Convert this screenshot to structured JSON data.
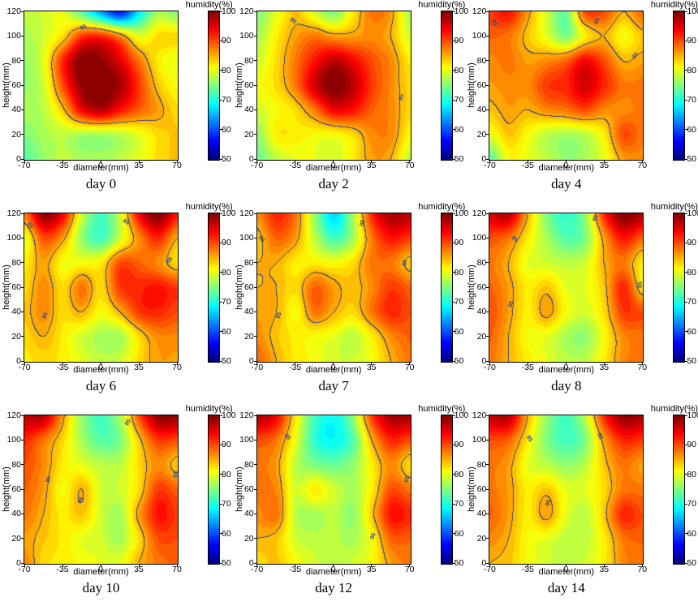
{
  "figure": {
    "background": "#ffffff"
  },
  "chart_data": {
    "type": "heatmap",
    "layout": "3x3-grid-filled-contour",
    "colormap": "jet",
    "value_range": [
      50,
      100
    ],
    "x_range": [
      -70,
      70
    ],
    "y_range": [
      0,
      120
    ],
    "xlabel": "diameter(mm)",
    "ylabel": "height(mm)",
    "colorbar_label": "humidity(%)",
    "x_ticks": [
      -70,
      -35,
      0,
      35,
      70
    ],
    "x_tick_labels": [
      "-70",
      "-35",
      "0",
      "35",
      "70"
    ],
    "y_ticks": [
      0,
      20,
      40,
      60,
      80,
      100,
      120
    ],
    "y_tick_labels": [
      "0",
      "20",
      "40",
      "60",
      "80",
      "100",
      "120"
    ],
    "colorbar_ticks": [
      50,
      60,
      70,
      80,
      90,
      100
    ],
    "colorbar_tick_labels": [
      "50",
      "60",
      "70",
      "80",
      "90",
      "100"
    ],
    "contour_level": 85,
    "contour_label": "85",
    "contour_color": "#3b4a80",
    "grid_x": [
      -70,
      -52.5,
      -35,
      -17.5,
      0,
      17.5,
      35,
      52.5,
      70
    ],
    "grid_y": [
      0,
      20,
      40,
      60,
      80,
      100,
      120
    ],
    "panels": [
      {
        "title": "day 0",
        "values": [
          [
            73,
            76,
            78,
            77,
            77,
            78,
            80,
            83,
            84
          ],
          [
            75,
            77,
            78,
            77,
            77,
            78,
            80,
            83,
            84
          ],
          [
            77,
            78,
            84,
            94,
            97,
            93,
            89,
            86,
            83
          ],
          [
            76,
            79,
            90,
            99,
            100,
            98,
            91,
            84,
            81
          ],
          [
            76,
            80,
            92,
            100,
            99,
            95,
            88,
            82,
            80
          ],
          [
            77,
            79,
            83,
            91,
            92,
            87,
            80,
            83,
            83
          ],
          [
            78,
            79,
            80,
            73,
            64,
            57,
            68,
            77,
            75
          ]
        ],
        "contour_labels": [
          {
            "x": -16,
            "y": 107,
            "angle": -22
          }
        ]
      },
      {
        "title": "day 2",
        "values": [
          [
            74,
            78,
            80,
            80,
            79,
            82,
            86,
            85,
            78
          ],
          [
            76,
            82,
            82,
            81,
            81,
            83,
            87,
            87,
            81
          ],
          [
            79,
            81,
            83,
            88,
            94,
            93,
            89,
            87,
            83
          ],
          [
            81,
            83,
            88,
            96,
            100,
            97,
            91,
            87,
            83
          ],
          [
            79,
            83,
            88,
            93,
            97,
            94,
            90,
            87,
            82
          ],
          [
            77,
            82,
            86,
            88,
            86,
            86,
            87,
            85,
            79
          ],
          [
            75,
            80,
            84,
            79,
            75,
            82,
            88,
            86,
            77
          ]
        ],
        "contour_labels": [
          {
            "x": -37,
            "y": 112,
            "angle": 38
          },
          {
            "x": 63,
            "y": 50,
            "angle": -78
          }
        ]
      },
      {
        "title": "day 4",
        "values": [
          [
            73,
            81,
            80,
            78,
            76,
            77,
            80,
            86,
            87
          ],
          [
            80,
            84,
            81,
            78,
            77,
            78,
            82,
            90,
            88
          ],
          [
            84,
            86,
            85,
            87,
            88,
            90,
            87,
            87,
            88
          ],
          [
            86,
            87,
            87,
            91,
            92,
            96,
            92,
            88,
            88
          ],
          [
            87,
            88,
            86,
            87,
            89,
            94,
            90,
            85,
            86
          ],
          [
            89,
            88,
            84,
            80,
            75,
            82,
            85,
            81,
            84
          ],
          [
            91,
            93,
            86,
            79,
            74,
            90,
            90,
            85,
            89
          ]
        ],
        "contour_labels": [
          {
            "x": -66,
            "y": 111,
            "angle": 62
          },
          {
            "x": 29,
            "y": 112,
            "angle": -72
          },
          {
            "x": 64,
            "y": 84,
            "angle": -55
          }
        ]
      },
      {
        "title": "day 6",
        "values": [
          [
            82,
            83,
            82,
            80,
            78,
            79,
            83,
            86,
            86
          ],
          [
            83,
            85,
            82,
            79,
            77,
            77,
            83,
            87,
            87
          ],
          [
            84,
            87,
            83,
            85,
            81,
            85,
            91,
            92,
            90
          ],
          [
            83,
            87,
            83,
            88,
            83,
            91,
            92,
            93,
            91
          ],
          [
            82,
            86,
            81,
            81,
            82,
            90,
            89,
            87,
            83
          ],
          [
            80,
            90,
            86,
            76,
            72,
            79,
            87,
            92,
            85
          ],
          [
            88,
            99,
            94,
            79,
            72,
            79,
            94,
            100,
            93
          ]
        ],
        "contour_labels": [
          {
            "x": -65,
            "y": 110,
            "angle": 50
          },
          {
            "x": -51,
            "y": 37,
            "angle": -72
          },
          {
            "x": 23,
            "y": 113,
            "angle": 30
          },
          {
            "x": 63,
            "y": 82,
            "angle": -45
          }
        ]
      },
      {
        "title": "day 7",
        "values": [
          [
            89,
            85,
            82,
            81,
            79,
            79,
            81,
            85,
            88
          ],
          [
            87,
            84,
            82,
            81,
            80,
            78,
            82,
            87,
            89
          ],
          [
            86,
            85,
            81,
            88,
            85,
            83,
            88,
            92,
            90
          ],
          [
            85,
            85,
            83,
            89,
            86,
            84,
            87,
            91,
            89
          ],
          [
            85,
            85,
            82,
            82,
            81,
            83,
            88,
            88,
            84
          ],
          [
            84,
            89,
            86,
            78,
            72,
            77,
            88,
            93,
            91
          ],
          [
            87,
            92,
            88,
            76,
            67,
            77,
            92,
            98,
            97
          ]
        ],
        "contour_labels": [
          {
            "x": -66,
            "y": 99,
            "angle": 55
          },
          {
            "x": -50,
            "y": 37,
            "angle": -75
          },
          {
            "x": 27,
            "y": 112,
            "angle": -75
          },
          {
            "x": 66,
            "y": 80,
            "angle": -82
          }
        ]
      },
      {
        "title": "day 8",
        "values": [
          [
            88,
            85,
            82,
            80,
            78,
            78,
            82,
            87,
            88
          ],
          [
            89,
            85,
            81,
            80,
            77,
            76,
            81,
            87,
            88
          ],
          [
            90,
            86,
            82,
            86,
            81,
            79,
            83,
            91,
            90
          ],
          [
            89,
            86,
            82,
            84,
            80,
            80,
            84,
            92,
            83
          ],
          [
            88,
            85,
            80,
            79,
            78,
            79,
            85,
            88,
            82
          ],
          [
            90,
            88,
            82,
            77,
            73,
            75,
            86,
            93,
            89
          ],
          [
            96,
            97,
            85,
            75,
            71,
            76,
            92,
            100,
            98
          ]
        ],
        "contour_labels": [
          {
            "x": -47,
            "y": 99,
            "angle": 40
          },
          {
            "x": -50,
            "y": 46,
            "angle": -78
          },
          {
            "x": 27,
            "y": 116,
            "angle": -72
          },
          {
            "x": 68,
            "y": 62,
            "angle": -88
          }
        ]
      },
      {
        "title": "day 10",
        "values": [
          [
            87,
            83,
            82,
            81,
            80,
            80,
            85,
            88,
            89
          ],
          [
            86,
            84,
            82,
            80,
            79,
            77,
            83,
            90,
            90
          ],
          [
            88,
            85,
            82,
            84,
            79,
            77,
            86,
            93,
            91
          ],
          [
            89,
            86,
            81,
            85,
            79,
            79,
            83,
            91,
            89
          ],
          [
            90,
            87,
            82,
            80,
            78,
            78,
            83,
            87,
            84
          ],
          [
            92,
            88,
            83,
            77,
            73,
            75,
            84,
            91,
            90
          ],
          [
            97,
            97,
            86,
            76,
            72,
            77,
            90,
            99,
            99
          ]
        ],
        "contour_labels": [
          {
            "x": -48,
            "y": 68,
            "angle": -82
          },
          {
            "x": -18,
            "y": 51,
            "angle": -55
          },
          {
            "x": 25,
            "y": 114,
            "angle": -60
          },
          {
            "x": 69,
            "y": 72,
            "angle": -85
          }
        ]
      },
      {
        "title": "day 12",
        "values": [
          [
            83,
            84,
            81,
            79,
            78,
            79,
            81,
            86,
            88
          ],
          [
            85,
            84,
            79,
            78,
            78,
            77,
            81,
            89,
            89
          ],
          [
            87,
            88,
            78,
            77,
            78,
            76,
            84,
            93,
            92
          ],
          [
            88,
            87,
            79,
            82,
            79,
            77,
            82,
            90,
            88
          ],
          [
            88,
            86,
            78,
            75,
            74,
            76,
            82,
            87,
            83
          ],
          [
            90,
            88,
            80,
            71,
            69,
            73,
            85,
            92,
            90
          ],
          [
            98,
            94,
            82,
            72,
            69,
            76,
            91,
            98,
            98
          ]
        ],
        "contour_labels": [
          {
            "x": -42,
            "y": 102,
            "angle": 45
          },
          {
            "x": 37,
            "y": 22,
            "angle": -70
          },
          {
            "x": 68,
            "y": 68,
            "angle": -80
          }
        ]
      },
      {
        "title": "day 14",
        "values": [
          [
            85,
            84,
            81,
            79,
            78,
            79,
            82,
            87,
            88
          ],
          [
            87,
            85,
            81,
            80,
            78,
            78,
            82,
            88,
            89
          ],
          [
            89,
            86,
            82,
            86,
            80,
            78,
            84,
            92,
            90
          ],
          [
            88,
            86,
            82,
            84,
            80,
            80,
            83,
            88,
            88
          ],
          [
            88,
            86,
            80,
            78,
            76,
            78,
            84,
            88,
            86
          ],
          [
            90,
            89,
            82,
            75,
            72,
            75,
            86,
            92,
            91
          ],
          [
            97,
            97,
            85,
            76,
            72,
            78,
            92,
            99,
            98
          ]
        ],
        "contour_labels": [
          {
            "x": -34,
            "y": 101,
            "angle": 55
          },
          {
            "x": -16,
            "y": 49,
            "angle": -72
          },
          {
            "x": 31,
            "y": 103,
            "angle": 62
          }
        ]
      }
    ]
  }
}
